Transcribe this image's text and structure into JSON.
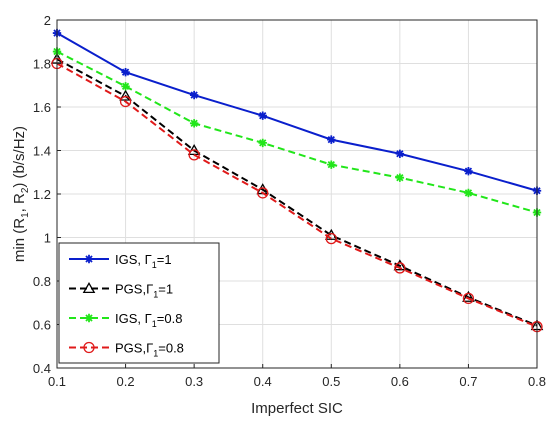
{
  "chart_data": {
    "type": "line",
    "title": "",
    "xlabel": "Imperfect SIC",
    "ylabel": {
      "prefix": "min (R",
      "sub1": "1",
      "mid": ", R",
      "sub2": "2",
      "suffix": ") (b/s/Hz)"
    },
    "xlim": [
      0.1,
      0.8
    ],
    "ylim": [
      0.4,
      2.0
    ],
    "xticks": [
      0.1,
      0.2,
      0.3,
      0.4,
      0.5,
      0.6,
      0.7,
      0.8
    ],
    "yticks": [
      0.4,
      0.6,
      0.8,
      1.0,
      1.2,
      1.4,
      1.6,
      1.8,
      2.0
    ],
    "xtick_labels": [
      "0.1",
      "0.2",
      "0.3",
      "0.4",
      "0.5",
      "0.6",
      "0.7",
      "0.8"
    ],
    "ytick_labels": [
      "0.4",
      "0.6",
      "0.8",
      "1",
      "1.2",
      "1.4",
      "1.6",
      "1.8",
      "2"
    ],
    "grid": true,
    "legend_position": "bottom-left",
    "x": [
      0.1,
      0.2,
      0.3,
      0.4,
      0.5,
      0.6,
      0.7,
      0.8
    ],
    "series": [
      {
        "key": "igs1",
        "legend": {
          "base": "IGS, Γ",
          "sub": "1",
          "tail": "=1"
        },
        "color": "#0a1fcc",
        "dash": "solid",
        "marker": "star",
        "values": [
          1.94,
          1.76,
          1.655,
          1.56,
          1.45,
          1.385,
          1.305,
          1.215
        ]
      },
      {
        "key": "pgs1",
        "legend": {
          "base": "PGS,Γ",
          "sub": "1",
          "tail": "=1"
        },
        "color": "#000000",
        "dash": "dashed",
        "marker": "triangle",
        "values": [
          1.82,
          1.65,
          1.4,
          1.22,
          1.01,
          0.87,
          0.725,
          0.595
        ]
      },
      {
        "key": "igs08",
        "legend": {
          "base": "IGS, Γ",
          "sub": "1",
          "tail": "=0.8"
        },
        "color": "#22e61a",
        "dash": "dashed",
        "marker": "star",
        "values": [
          1.855,
          1.695,
          1.525,
          1.435,
          1.335,
          1.275,
          1.205,
          1.115
        ]
      },
      {
        "key": "pgs08",
        "legend": {
          "base": "PGS,Γ",
          "sub": "1",
          "tail": "=0.8"
        },
        "color": "#e01a1a",
        "dash": "dashed",
        "marker": "circle",
        "values": [
          1.8,
          1.625,
          1.38,
          1.205,
          0.995,
          0.86,
          0.72,
          0.59
        ]
      }
    ]
  }
}
